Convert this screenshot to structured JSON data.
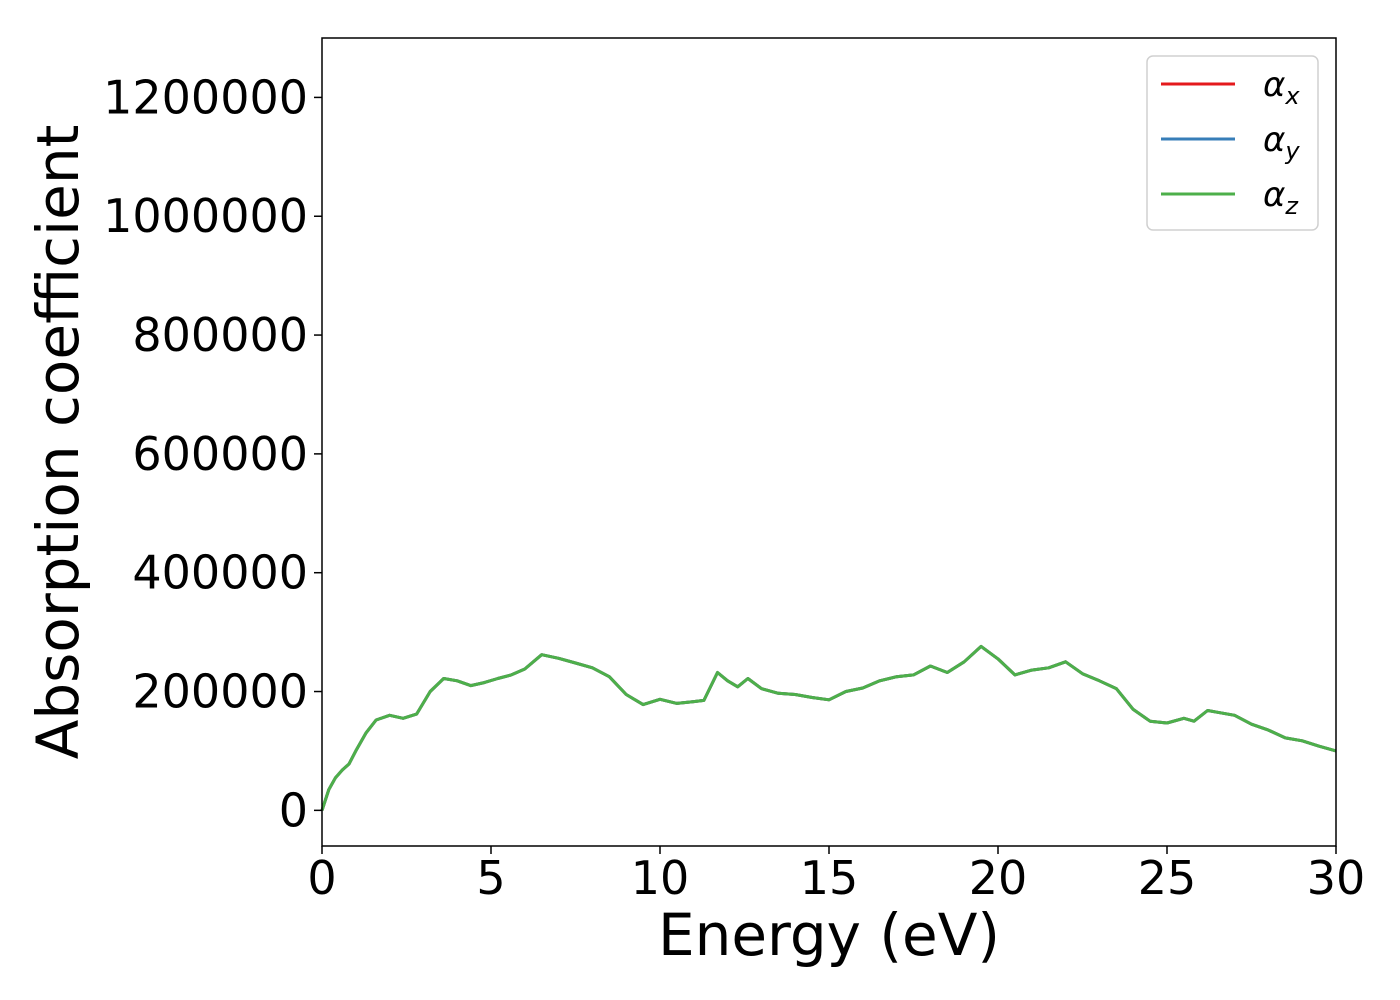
{
  "chart_data": {
    "type": "line",
    "xlabel": "Energy (eV)",
    "ylabel": "Absorption coefficient",
    "xlim": [
      0,
      30
    ],
    "ylim": [
      -60000,
      1300000
    ],
    "xticks": [
      0,
      5,
      10,
      15,
      20,
      25,
      30
    ],
    "yticks": [
      0,
      200000,
      400000,
      600000,
      800000,
      1000000,
      1200000
    ],
    "xtick_labels": [
      "0",
      "5",
      "10",
      "15",
      "20",
      "25",
      "30"
    ],
    "ytick_labels": [
      "0",
      "200000",
      "400000",
      "600000",
      "800000",
      "1000000",
      "1200000"
    ],
    "grid": false,
    "legend_position": "top-right",
    "x": [
      0,
      0.2,
      0.4,
      0.6,
      0.8,
      1.0,
      1.3,
      1.6,
      2.0,
      2.4,
      2.8,
      3.2,
      3.6,
      4.0,
      4.4,
      4.8,
      5.2,
      5.6,
      6.0,
      6.5,
      7.0,
      7.5,
      8.0,
      8.5,
      9.0,
      9.5,
      10.0,
      10.5,
      11.0,
      11.3,
      11.7,
      12.0,
      12.3,
      12.6,
      13.0,
      13.5,
      14.0,
      14.5,
      15.0,
      15.5,
      16.0,
      16.5,
      17.0,
      17.5,
      18.0,
      18.5,
      19.0,
      19.5,
      20.0,
      20.5,
      21.0,
      21.5,
      22.0,
      22.5,
      23.0,
      23.5,
      24.0,
      24.5,
      25.0,
      25.5,
      25.8,
      26.2,
      26.5,
      27.0,
      27.5,
      28.0,
      28.5,
      29.0,
      29.5,
      30.0
    ],
    "series": [
      {
        "name": "x",
        "color": "#e41a1c",
        "values": [
          0,
          35000,
          55000,
          68000,
          78000,
          100000,
          130000,
          152000,
          160000,
          155000,
          162000,
          200000,
          222000,
          218000,
          210000,
          215000,
          222000,
          228000,
          238000,
          262000,
          256000,
          248000,
          240000,
          225000,
          195000,
          178000,
          187000,
          180000,
          183000,
          185000,
          232000,
          218000,
          208000,
          222000,
          205000,
          197000,
          195000,
          190000,
          186000,
          200000,
          206000,
          218000,
          225000,
          228000,
          243000,
          232000,
          250000,
          276000,
          255000,
          228000,
          236000,
          240000,
          250000,
          230000,
          218000,
          205000,
          170000,
          150000,
          147000,
          155000,
          150000,
          168000,
          165000,
          160000,
          145000,
          135000,
          122000,
          117000,
          108000,
          100000
        ]
      },
      {
        "name": "y",
        "color": "#377eb8",
        "values": [
          0,
          35000,
          55000,
          68000,
          78000,
          100000,
          130000,
          152000,
          160000,
          155000,
          162000,
          200000,
          222000,
          218000,
          210000,
          215000,
          222000,
          228000,
          238000,
          262000,
          256000,
          248000,
          240000,
          225000,
          195000,
          178000,
          187000,
          180000,
          183000,
          185000,
          232000,
          218000,
          208000,
          222000,
          205000,
          197000,
          195000,
          190000,
          186000,
          200000,
          206000,
          218000,
          225000,
          228000,
          243000,
          232000,
          250000,
          276000,
          255000,
          228000,
          236000,
          240000,
          250000,
          230000,
          218000,
          205000,
          170000,
          150000,
          147000,
          155000,
          150000,
          168000,
          165000,
          160000,
          145000,
          135000,
          122000,
          117000,
          108000,
          100000
        ]
      },
      {
        "name": "z",
        "color": "#4daf4a",
        "values": [
          0,
          35000,
          55000,
          68000,
          78000,
          100000,
          130000,
          152000,
          160000,
          155000,
          162000,
          200000,
          222000,
          218000,
          210000,
          215000,
          222000,
          228000,
          238000,
          262000,
          256000,
          248000,
          240000,
          225000,
          195000,
          178000,
          187000,
          180000,
          183000,
          185000,
          232000,
          218000,
          208000,
          222000,
          205000,
          197000,
          195000,
          190000,
          186000,
          200000,
          206000,
          218000,
          225000,
          228000,
          243000,
          232000,
          250000,
          276000,
          255000,
          228000,
          236000,
          240000,
          250000,
          230000,
          218000,
          205000,
          170000,
          150000,
          147000,
          155000,
          150000,
          168000,
          165000,
          160000,
          145000,
          135000,
          122000,
          117000,
          108000,
          100000
        ]
      }
    ],
    "legend": [
      {
        "symbol": "α",
        "subscript": "x",
        "color": "#e41a1c"
      },
      {
        "symbol": "α",
        "subscript": "y",
        "color": "#377eb8"
      },
      {
        "symbol": "α",
        "subscript": "z",
        "color": "#4daf4a"
      }
    ]
  }
}
